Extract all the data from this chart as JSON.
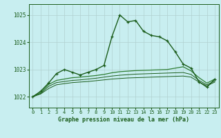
{
  "title": "Graphe pression niveau de la mer (hPa)",
  "background_color": "#c8eef0",
  "grid_color": "#b0d0d0",
  "line_color_dark": "#1a5c1a",
  "line_color_mid": "#2e7d32",
  "line_color_light": "#4caf50",
  "xlim_min": -0.5,
  "xlim_max": 23.5,
  "ylim_min": 1021.6,
  "ylim_max": 1025.4,
  "yticks": [
    1022,
    1023,
    1024,
    1025
  ],
  "xticks": [
    0,
    1,
    2,
    3,
    4,
    5,
    6,
    7,
    8,
    9,
    10,
    11,
    12,
    13,
    14,
    15,
    16,
    17,
    18,
    19,
    20,
    21,
    22,
    23
  ],
  "series_main": [
    1022.0,
    1022.2,
    1022.5,
    1022.85,
    1023.0,
    1022.9,
    1022.8,
    1022.9,
    1023.0,
    1023.15,
    1024.2,
    1025.0,
    1024.75,
    1024.8,
    1024.4,
    1024.25,
    1024.2,
    1024.05,
    1023.65,
    1023.2,
    1023.05,
    1022.55,
    1022.35,
    1022.65
  ],
  "series_a": [
    1022.0,
    1022.15,
    1022.45,
    1022.6,
    1022.65,
    1022.7,
    1022.72,
    1022.75,
    1022.78,
    1022.82,
    1022.88,
    1022.92,
    1022.94,
    1022.96,
    1022.97,
    1022.98,
    1022.99,
    1023.0,
    1023.05,
    1023.1,
    1022.95,
    1022.7,
    1022.5,
    1022.65
  ],
  "series_b": [
    1022.0,
    1022.12,
    1022.38,
    1022.52,
    1022.56,
    1022.6,
    1022.62,
    1022.65,
    1022.68,
    1022.72,
    1022.76,
    1022.79,
    1022.81,
    1022.83,
    1022.84,
    1022.85,
    1022.86,
    1022.87,
    1022.88,
    1022.89,
    1022.82,
    1022.6,
    1022.44,
    1022.58
  ],
  "series_c": [
    1022.0,
    1022.1,
    1022.3,
    1022.44,
    1022.48,
    1022.52,
    1022.54,
    1022.56,
    1022.59,
    1022.62,
    1022.65,
    1022.67,
    1022.69,
    1022.7,
    1022.71,
    1022.72,
    1022.73,
    1022.74,
    1022.75,
    1022.76,
    1022.72,
    1022.54,
    1022.4,
    1022.54
  ]
}
